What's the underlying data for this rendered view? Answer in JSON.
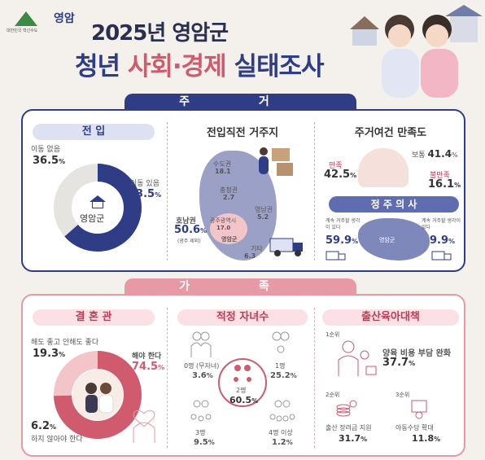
{
  "header": {
    "city": "영암",
    "slogan": "대한민국 혁신수도",
    "title_line1": "2025년 영암군",
    "title_line2_a": "청년",
    "title_line2_b": "사회·경제",
    "title_line2_c": "실태조사"
  },
  "housing": {
    "section": "주 거",
    "moving_in": {
      "title": "전 입",
      "center": "영암군",
      "no_move_label": "이동 없음",
      "no_move_value": "36.5",
      "moved_label": "이동 있음",
      "moved_value": "63.5",
      "unit": "%"
    },
    "prev_residence": {
      "title": "전입직전 거주지",
      "capital_label": "수도권",
      "capital_value": "18.1",
      "chungcheong_label": "충청권",
      "chungcheong_value": "2.7",
      "yeongnam_label": "영남권",
      "yeongnam_value": "5.2",
      "honam_label": "호남권",
      "honam_value": "50.6",
      "honam_note": "(광주 제외)",
      "gwangju_label": "광주광역시",
      "gwangju_value": "17.0",
      "yeongam_label": "영암군",
      "other_label": "기타",
      "other_value": "6.3",
      "unit": "%"
    },
    "satisfaction": {
      "title": "주거여건 만족도",
      "satisfied_label": "만족",
      "satisfied_value": "42.5",
      "neutral_label": "보통",
      "neutral_value": "41.4",
      "dissatisfied_label": "불만족",
      "dissatisfied_value": "16.1",
      "unit": "%"
    },
    "settle": {
      "title": "정 주 의 사",
      "yes_label": "계속 거주할 생각이 있다",
      "yes_value": "59.9",
      "no_label": "계속 거주할 생각이 없다",
      "no_value": "9.9",
      "map_label": "영암군",
      "unit": "%"
    }
  },
  "family": {
    "section": "가 족",
    "marriage": {
      "title": "결 혼 관",
      "either_label": "해도 좋고 안해도 좋다",
      "either_value": "19.3",
      "must_label": "해야 한다",
      "must_value": "74.5",
      "mustnot_label": "하지 않아야 한다",
      "mustnot_value": "6.2",
      "unit": "%"
    },
    "children": {
      "title": "적정 자녀수",
      "zero_label": "0명 (무자녀)",
      "zero_value": "3.6",
      "one_label": "1명",
      "one_value": "25.2",
      "two_label": "2명",
      "two_value": "60.5",
      "three_label": "3명",
      "three_value": "9.5",
      "four_label": "4명 이상",
      "four_value": "1.2",
      "unit": "%"
    },
    "policy": {
      "title": "출산육아대책",
      "rank1": "1순위",
      "rank1_label": "양육 비용 부담 완화",
      "rank1_value": "37.7",
      "rank2": "2순위",
      "rank2_label": "출산 장려금 지원",
      "rank2_value": "31.7",
      "rank3": "3순위",
      "rank3_label": "아동수당 확대",
      "rank3_value": "11.8",
      "unit": "%"
    }
  },
  "colors": {
    "navy": "#2f3d86",
    "pink": "#d05a6e",
    "lightpink": "#f3c5c9",
    "grey": "#e6e4e1"
  }
}
